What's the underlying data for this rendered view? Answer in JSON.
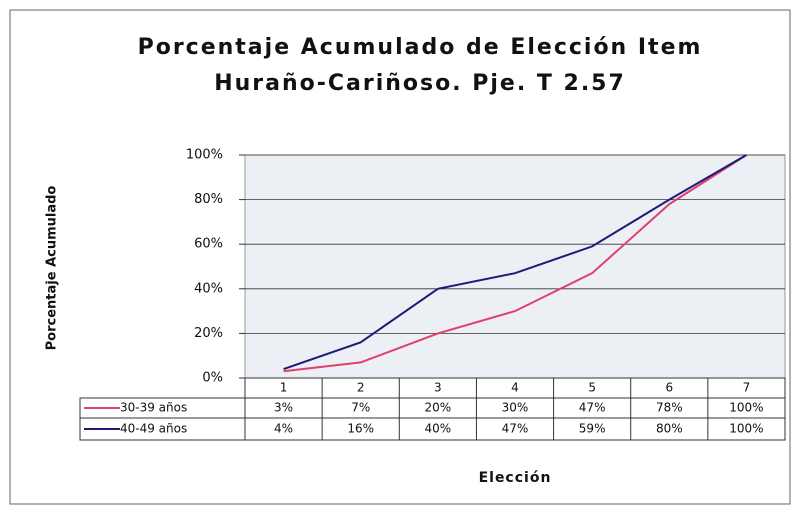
{
  "chart_data": {
    "type": "line",
    "title": [
      "Porcentaje Acumulado de Elección Item",
      "Huraño-Cariñoso. Pje. T 2.57"
    ],
    "y_label": "Porcentaje Acumulado",
    "x_label": "Elección",
    "categories": [
      "1",
      "2",
      "3",
      "4",
      "5",
      "6",
      "7"
    ],
    "series": [
      {
        "name": "30-39 años",
        "color": "#e0406a",
        "values": [
          3,
          7,
          20,
          30,
          47,
          78,
          100
        ],
        "value_labels": [
          "3%",
          "7%",
          "20%",
          "30%",
          "47%",
          "78%",
          "100%"
        ]
      },
      {
        "name": "40-49 años",
        "color": "#1c1c78",
        "values": [
          4,
          16,
          40,
          47,
          59,
          80,
          100
        ],
        "value_labels": [
          "4%",
          "16%",
          "40%",
          "47%",
          "59%",
          "80%",
          "100%"
        ]
      }
    ],
    "ylim": [
      0,
      100
    ],
    "yticks": [
      {
        "value": 0,
        "label": "0%"
      },
      {
        "value": 20,
        "label": "20%"
      },
      {
        "value": 40,
        "label": "40%"
      },
      {
        "value": 60,
        "label": "60%"
      },
      {
        "value": 80,
        "label": "80%"
      },
      {
        "value": 100,
        "label": "100%"
      }
    ],
    "grid": true,
    "data_table": true
  }
}
